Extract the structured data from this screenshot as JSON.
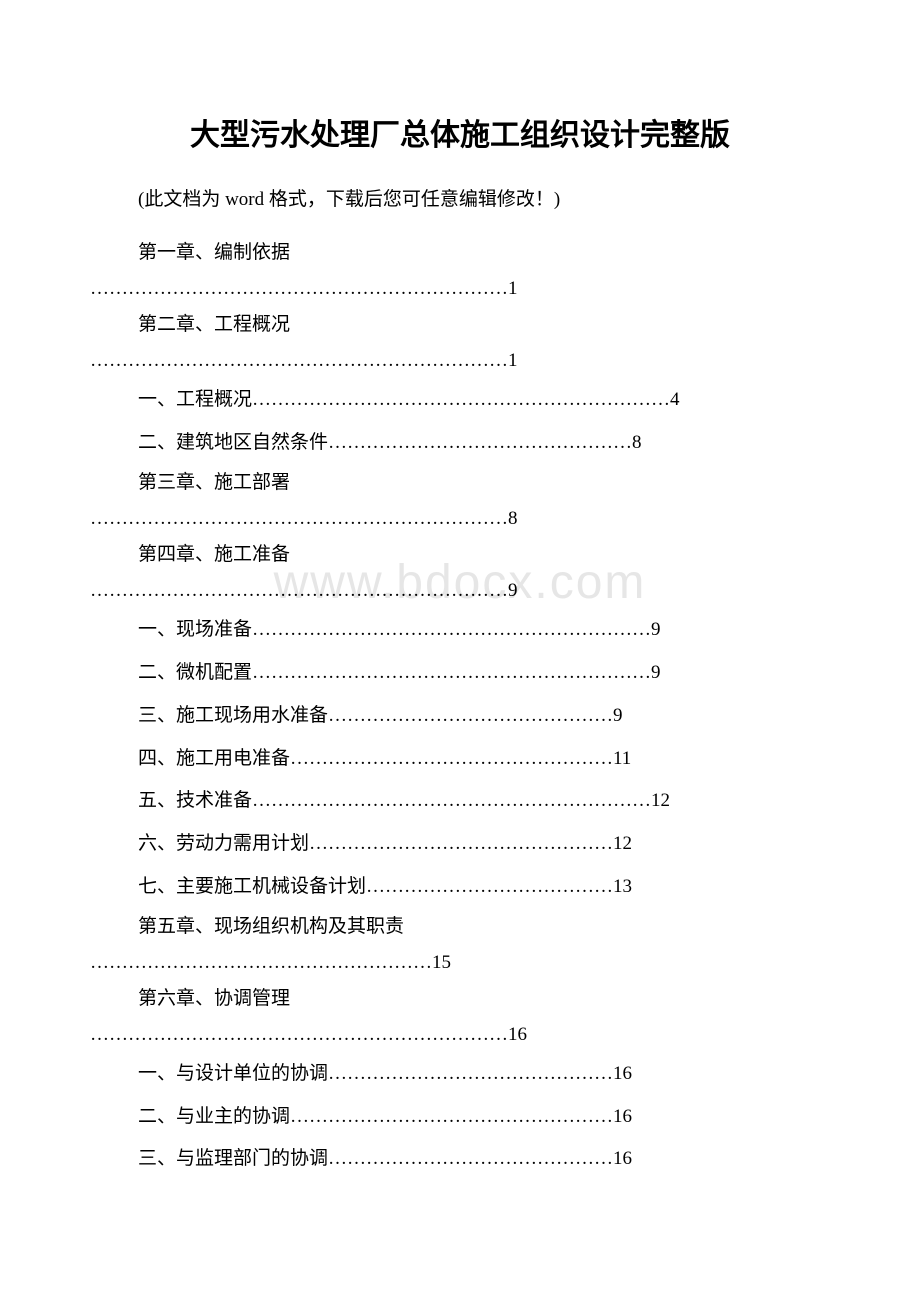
{
  "title": "大型污水处理厂总体施工组织设计完整版",
  "note": "(此文档为 word 格式，下载后您可任意编辑修改！)",
  "watermark": "www.bdocx.com",
  "toc": {
    "multiline": [
      {
        "label": "第一章、编制依据",
        "dots": "…………………………………………………………1"
      },
      {
        "label": "第二章、工程概况",
        "dots": "…………………………………………………………1"
      }
    ],
    "singles1": [
      {
        "text": "一、工程概况…………………………………………………………4"
      },
      {
        "text": "二、建筑地区自然条件…………………………………………8"
      }
    ],
    "multiline2": [
      {
        "label": "第三章、施工部署",
        "dots": "…………………………………………………………8"
      },
      {
        "label": "第四章、施工准备",
        "dots": "…………………………………………………………9"
      }
    ],
    "singles2": [
      {
        "text": "一、现场准备………………………………………………………9"
      },
      {
        "text": "二、微机配置………………………………………………………9"
      },
      {
        "text": "三、施工现场用水准备………………………………………9"
      },
      {
        "text": "四、施工用电准备……………………………………………11"
      },
      {
        "text": "五、技术准备………………………………………………………12"
      },
      {
        "text": "六、劳动力需用计划…………………………………………12"
      },
      {
        "text": "七、主要施工机械设备计划…………………………………13"
      }
    ],
    "multiline3": [
      {
        "label": "第五章、现场组织机构及其职责",
        "dots": "………………………………………………15"
      },
      {
        "label": "第六章、协调管理",
        "dots": "…………………………………………………………16"
      }
    ],
    "singles3": [
      {
        "text": "一、与设计单位的协调………………………………………16"
      },
      {
        "text": "二、与业主的协调……………………………………………16"
      },
      {
        "text": "三、与监理部门的协调………………………………………16"
      }
    ]
  }
}
